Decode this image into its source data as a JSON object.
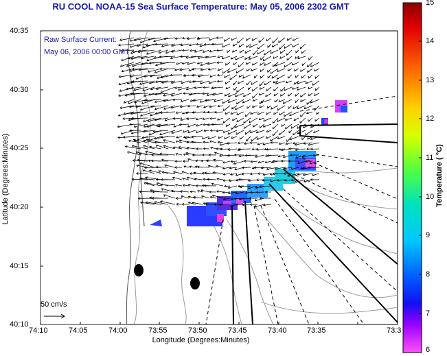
{
  "title": "RU COOL  NOAA-15  Sea Surface Temperature:  May 05, 2006 2302 GMT",
  "current_legend": {
    "line1": "Raw Surface Current:",
    "line2": "May 06, 2006 00:00 GMT",
    "scale_label": "50 cm/s"
  },
  "x_axis": {
    "label": "Longitude (Degrees:Minutes)",
    "ticks": [
      "74:10",
      "74:05",
      "74:00",
      "73:55",
      "73:50",
      "73:45",
      "73:40",
      "73:35",
      "73:3"
    ]
  },
  "y_axis": {
    "label": "Latitude (Degrees:Minutes)",
    "ticks": [
      "40:35",
      "40:30",
      "40:25",
      "40:20",
      "40:15",
      "40:10"
    ]
  },
  "colorbar": {
    "title": "Temperature ( °C)",
    "ticks": [
      "15",
      "14",
      "13",
      "12",
      "11",
      "10",
      "9",
      "8",
      "7",
      "6"
    ],
    "colors": [
      "#8b0000",
      "#ff0000",
      "#ff8000",
      "#ffd700",
      "#c8ff00",
      "#00e070",
      "#00e0e0",
      "#0090ff",
      "#1010ff",
      "#a000ff",
      "#ff40ff"
    ]
  },
  "colors": {
    "title_text": "#1a1ab0",
    "contour": "#9a9a9a",
    "coastline": "#555555"
  }
}
